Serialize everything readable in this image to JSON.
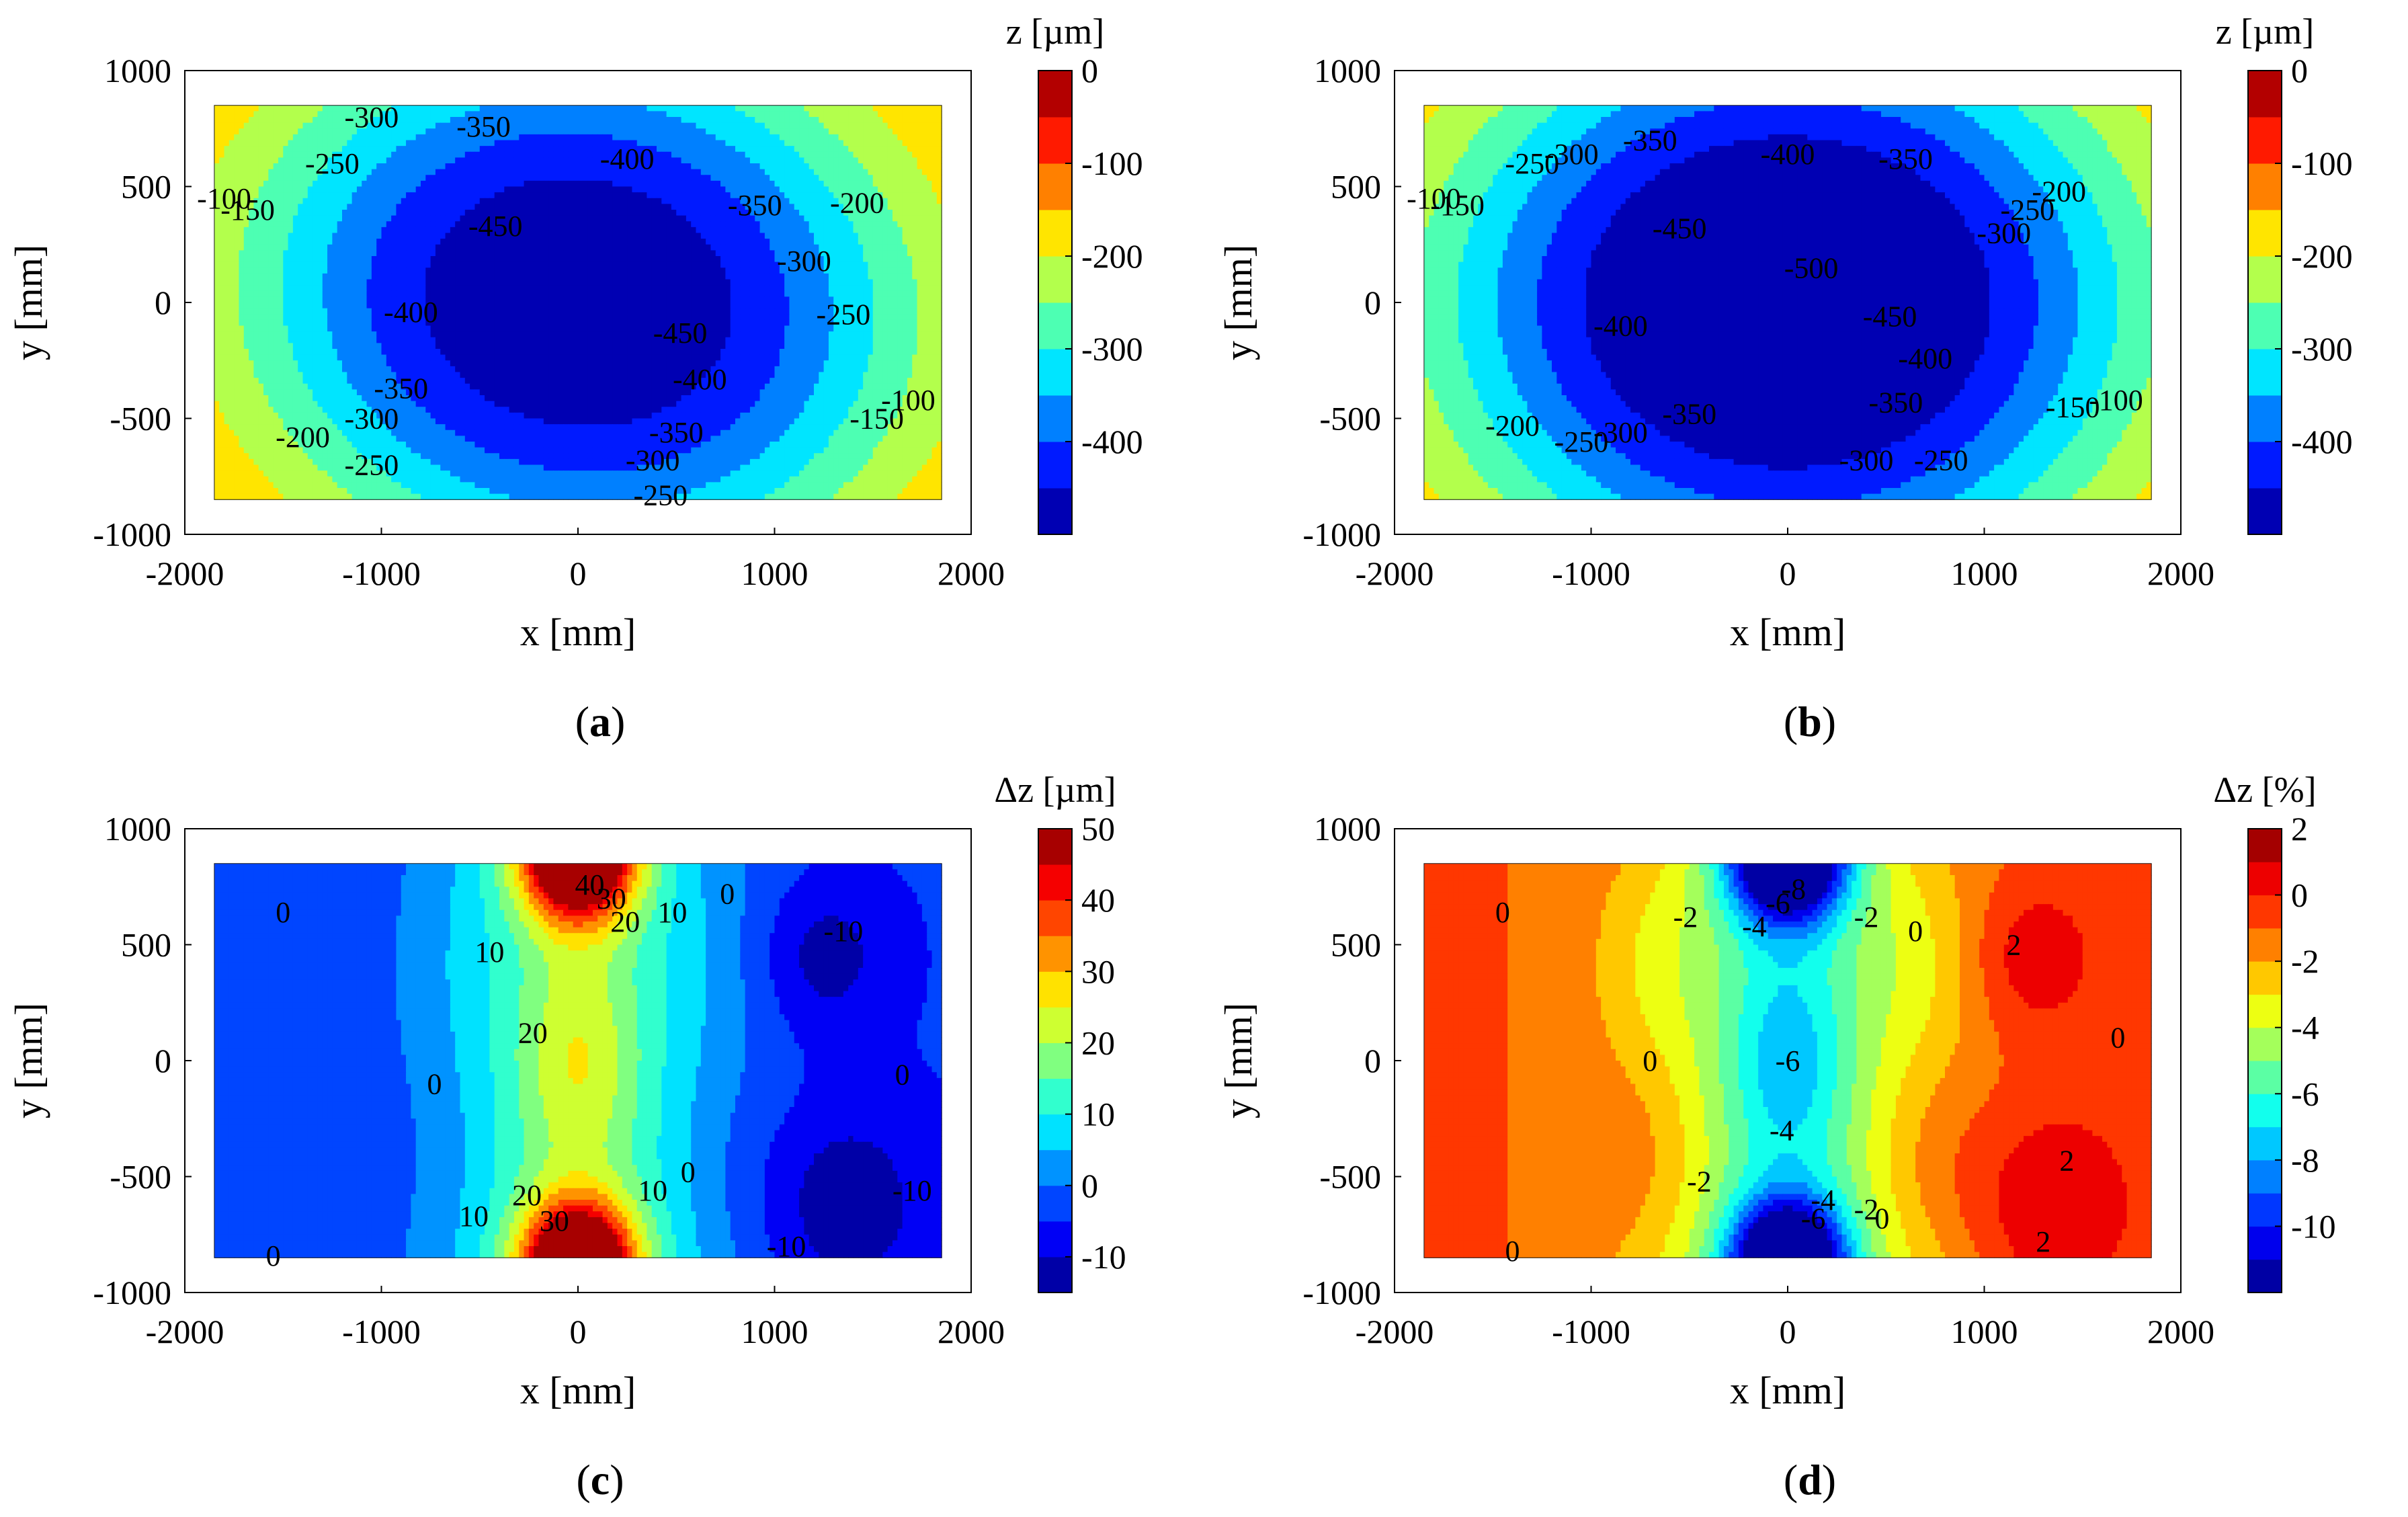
{
  "chart_data": [
    {
      "type": "contour",
      "panel_label": "(a)",
      "panel_letter": "a",
      "colorbar_title": "z [µm]",
      "colorbar_ticks": [
        "0",
        "-100",
        "-200",
        "-300",
        "-400"
      ],
      "colorbar_tick_values": [
        0,
        -100,
        -200,
        -300,
        -400
      ],
      "clim": [
        -500,
        0
      ],
      "levels": [
        -500,
        -450,
        -400,
        -350,
        -300,
        -250,
        -200,
        -150,
        -100,
        -50,
        0
      ],
      "field": {
        "kind": "bowl",
        "min": -490,
        "cx": 0,
        "cy": 0,
        "ax": 1.75,
        "ay": 1.2,
        "p": 1.5,
        "tilt": 0.12
      },
      "contour_labels": [
        {
          "text": "-100",
          "x": -1800,
          "y": 450
        },
        {
          "text": "-150",
          "x": -1680,
          "y": 400
        },
        {
          "text": "-250",
          "x": -1250,
          "y": 600
        },
        {
          "text": "-300",
          "x": -1050,
          "y": 800
        },
        {
          "text": "-350",
          "x": -480,
          "y": 760
        },
        {
          "text": "-400",
          "x": 250,
          "y": 620
        },
        {
          "text": "-450",
          "x": -420,
          "y": 330
        },
        {
          "text": "-400",
          "x": -850,
          "y": -40
        },
        {
          "text": "-450",
          "x": 520,
          "y": -130
        },
        {
          "text": "-400",
          "x": 620,
          "y": -330
        },
        {
          "text": "-350",
          "x": -900,
          "y": -370
        },
        {
          "text": "-300",
          "x": -1050,
          "y": -500
        },
        {
          "text": "-250",
          "x": -1050,
          "y": -700
        },
        {
          "text": "-200",
          "x": -1400,
          "y": -580
        },
        {
          "text": "-350",
          "x": 500,
          "y": -560
        },
        {
          "text": "-300",
          "x": 380,
          "y": -680
        },
        {
          "text": "-250",
          "x": 420,
          "y": -830
        },
        {
          "text": "-350",
          "x": 900,
          "y": 420
        },
        {
          "text": "-300",
          "x": 1150,
          "y": 180
        },
        {
          "text": "-250",
          "x": 1350,
          "y": -50
        },
        {
          "text": "-200",
          "x": 1420,
          "y": 430
        },
        {
          "text": "-150",
          "x": 1520,
          "y": -500
        },
        {
          "text": "-100",
          "x": 1680,
          "y": -420
        }
      ],
      "xlabel": "x [mm]",
      "ylabel": "y [mm]",
      "xlim": [
        -2000,
        2000
      ],
      "ylim": [
        -1000,
        1000
      ],
      "data_extent_x": [
        -1850,
        1850
      ],
      "data_extent_y": [
        -850,
        850
      ],
      "xticks": [
        "-2000",
        "-1000",
        "0",
        "1000",
        "2000"
      ],
      "yticks": [
        "1000",
        "500",
        "0",
        "-500",
        "-1000"
      ],
      "xtick_values": [
        -2000,
        -1000,
        0,
        1000,
        2000
      ],
      "ytick_values": [
        1000,
        500,
        0,
        -500,
        -1000
      ]
    },
    {
      "type": "contour",
      "panel_label": "(b)",
      "panel_letter": "b",
      "colorbar_title": "z [µm]",
      "colorbar_ticks": [
        "0",
        "-100",
        "-200",
        "-300",
        "-400"
      ],
      "colorbar_tick_values": [
        0,
        -100,
        -200,
        -300,
        -400
      ],
      "clim": [
        -500,
        0
      ],
      "levels": [
        -500,
        -450,
        -400,
        -350,
        -300,
        -250,
        -200,
        -150,
        -100,
        -50,
        0
      ],
      "field": {
        "kind": "bowl",
        "min": -520,
        "cx": 0,
        "cy": 0,
        "ax": 1.85,
        "ay": 1.28,
        "p": 1.6,
        "tilt": 0.0
      },
      "contour_labels": [
        {
          "text": "-100",
          "x": -1800,
          "y": 450
        },
        {
          "text": "-150",
          "x": -1680,
          "y": 420
        },
        {
          "text": "-250",
          "x": -1300,
          "y": 600
        },
        {
          "text": "-300",
          "x": -1100,
          "y": 640
        },
        {
          "text": "-350",
          "x": -700,
          "y": 700
        },
        {
          "text": "-400",
          "x": 0,
          "y": 640
        },
        {
          "text": "-350",
          "x": 600,
          "y": 620
        },
        {
          "text": "-450",
          "x": -550,
          "y": 320
        },
        {
          "text": "-500",
          "x": 120,
          "y": 150
        },
        {
          "text": "-400",
          "x": -850,
          "y": -100
        },
        {
          "text": "-450",
          "x": 520,
          "y": -60
        },
        {
          "text": "-400",
          "x": 700,
          "y": -240
        },
        {
          "text": "-350",
          "x": -500,
          "y": -480
        },
        {
          "text": "-350",
          "x": 550,
          "y": -430
        },
        {
          "text": "-300",
          "x": -850,
          "y": -560
        },
        {
          "text": "-250",
          "x": -1050,
          "y": -600
        },
        {
          "text": "-200",
          "x": -1400,
          "y": -530
        },
        {
          "text": "-300",
          "x": 400,
          "y": -680
        },
        {
          "text": "-250",
          "x": 780,
          "y": -680
        },
        {
          "text": "-300",
          "x": 1100,
          "y": 300
        },
        {
          "text": "-250",
          "x": 1220,
          "y": 400
        },
        {
          "text": "-200",
          "x": 1380,
          "y": 480
        },
        {
          "text": "-150",
          "x": 1450,
          "y": -450
        },
        {
          "text": "-100",
          "x": 1670,
          "y": -420
        }
      ],
      "xlabel": "x [mm]",
      "ylabel": "y [mm]",
      "xlim": [
        -2000,
        2000
      ],
      "ylim": [
        -1000,
        1000
      ],
      "data_extent_x": [
        -1850,
        1850
      ],
      "data_extent_y": [
        -850,
        850
      ],
      "xticks": [
        "-2000",
        "-1000",
        "0",
        "1000",
        "2000"
      ],
      "yticks": [
        "1000",
        "500",
        "0",
        "-500",
        "-1000"
      ],
      "xtick_values": [
        -2000,
        -1000,
        0,
        1000,
        2000
      ],
      "ytick_values": [
        1000,
        500,
        0,
        -500,
        -1000
      ]
    },
    {
      "type": "contour",
      "panel_label": "(c)",
      "panel_letter": "c",
      "colorbar_title": "Δz [µm]",
      "colorbar_ticks": [
        "50",
        "40",
        "30",
        "20",
        "10",
        "0",
        "-10"
      ],
      "colorbar_tick_values": [
        50,
        40,
        30,
        20,
        10,
        0,
        -10
      ],
      "clim": [
        -15,
        50
      ],
      "levels": [
        -15,
        -10,
        -5,
        0,
        5,
        10,
        15,
        20,
        25,
        30,
        35,
        40,
        45,
        50
      ],
      "field": {
        "kind": "band",
        "sign": 1,
        "base": -4.5,
        "band_amp": 19,
        "band_w": 520,
        "spot_amp": 62,
        "spot_r": 200,
        "center_amp": 11,
        "center_r": 210,
        "right_dip": -8.5
      },
      "contour_labels": [
        {
          "text": "0",
          "x": -1500,
          "y": 640
        },
        {
          "text": "10",
          "x": -450,
          "y": 470
        },
        {
          "text": "20",
          "x": 240,
          "y": 600
        },
        {
          "text": "30",
          "x": 170,
          "y": 700
        },
        {
          "text": "40",
          "x": 60,
          "y": 760
        },
        {
          "text": "10",
          "x": 480,
          "y": 640
        },
        {
          "text": "0",
          "x": 760,
          "y": 720
        },
        {
          "text": "-10",
          "x": 1350,
          "y": 560
        },
        {
          "text": "20",
          "x": -230,
          "y": 120
        },
        {
          "text": "0",
          "x": -730,
          "y": -100
        },
        {
          "text": "0",
          "x": 1650,
          "y": -60
        },
        {
          "text": "20",
          "x": -260,
          "y": -580
        },
        {
          "text": "30",
          "x": -120,
          "y": -690
        },
        {
          "text": "10",
          "x": -530,
          "y": -670
        },
        {
          "text": "10",
          "x": 380,
          "y": -560
        },
        {
          "text": "0",
          "x": 560,
          "y": -480
        },
        {
          "text": "-10",
          "x": 1700,
          "y": -560
        },
        {
          "text": "-10",
          "x": 1060,
          "y": -800
        },
        {
          "text": "0",
          "x": -1550,
          "y": -840
        }
      ],
      "xlabel": "x [mm]",
      "ylabel": "y [mm]",
      "xlim": [
        -2000,
        2000
      ],
      "ylim": [
        -1000,
        1000
      ],
      "data_extent_x": [
        -1850,
        1850
      ],
      "data_extent_y": [
        -850,
        850
      ],
      "xticks": [
        "-2000",
        "-1000",
        "0",
        "1000",
        "2000"
      ],
      "yticks": [
        "1000",
        "500",
        "0",
        "-500",
        "-1000"
      ],
      "xtick_values": [
        -2000,
        -1000,
        0,
        1000,
        2000
      ],
      "ytick_values": [
        1000,
        500,
        0,
        -500,
        -1000
      ]
    },
    {
      "type": "contour",
      "panel_label": "(d)",
      "panel_letter": "d",
      "colorbar_title": "Δz [%]",
      "colorbar_ticks": [
        "2",
        "0",
        "-2",
        "-4",
        "-6",
        "-8",
        "-10"
      ],
      "colorbar_tick_values": [
        2,
        0,
        -2,
        -4,
        -6,
        -8,
        -10
      ],
      "clim": [
        -12,
        2
      ],
      "levels": [
        -12,
        -11,
        -10,
        -9,
        -8,
        -7,
        -6,
        -5,
        -4,
        -3,
        -2,
        -1,
        0,
        1,
        2
      ],
      "field": {
        "kind": "band",
        "sign": -1,
        "base": -0.9,
        "band_amp": 4.3,
        "band_w": 520,
        "spot_amp": 13,
        "spot_r": 200,
        "center_amp": 2.6,
        "center_r": 210,
        "right_dip": 1.8
      },
      "contour_labels": [
        {
          "text": "0",
          "x": -1450,
          "y": 640
        },
        {
          "text": "-2",
          "x": -520,
          "y": 620
        },
        {
          "text": "-4",
          "x": -170,
          "y": 580
        },
        {
          "text": "-6",
          "x": -50,
          "y": 680
        },
        {
          "text": "-8",
          "x": 30,
          "y": 740
        },
        {
          "text": "-2",
          "x": 400,
          "y": 620
        },
        {
          "text": "0",
          "x": 650,
          "y": 560
        },
        {
          "text": "2",
          "x": 1150,
          "y": 500
        },
        {
          "text": "-6",
          "x": 0,
          "y": 0
        },
        {
          "text": "0",
          "x": -700,
          "y": 0
        },
        {
          "text": "0",
          "x": 1680,
          "y": 100
        },
        {
          "text": "-4",
          "x": -30,
          "y": -300
        },
        {
          "text": "2",
          "x": 1420,
          "y": -430
        },
        {
          "text": "-2",
          "x": -450,
          "y": -520
        },
        {
          "text": "-4",
          "x": 180,
          "y": -600
        },
        {
          "text": "-6",
          "x": 130,
          "y": -680
        },
        {
          "text": "-2",
          "x": 400,
          "y": -640
        },
        {
          "text": "0",
          "x": 480,
          "y": -680
        },
        {
          "text": "2",
          "x": 1300,
          "y": -780
        },
        {
          "text": "0",
          "x": -1400,
          "y": -820
        }
      ],
      "xlabel": "x [mm]",
      "ylabel": "y [mm]",
      "xlim": [
        -2000,
        2000
      ],
      "ylim": [
        -1000,
        1000
      ],
      "data_extent_x": [
        -1850,
        1850
      ],
      "data_extent_y": [
        -850,
        850
      ],
      "xticks": [
        "-2000",
        "-1000",
        "0",
        "1000",
        "2000"
      ],
      "yticks": [
        "1000",
        "500",
        "0",
        "-500",
        "-1000"
      ],
      "xtick_values": [
        -2000,
        -1000,
        0,
        1000,
        2000
      ],
      "ytick_values": [
        1000,
        500,
        0,
        -500,
        -1000
      ]
    }
  ]
}
